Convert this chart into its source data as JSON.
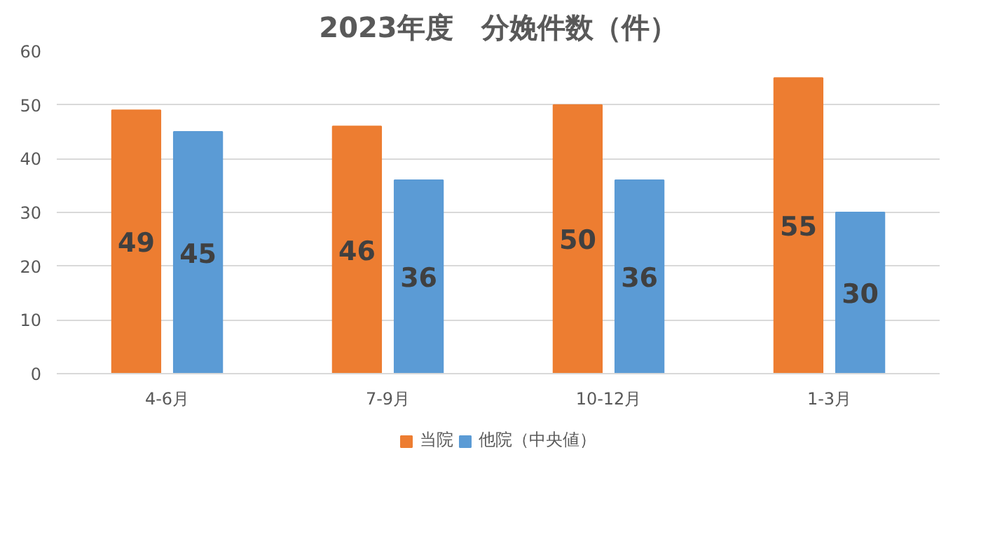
{
  "chart_data": {
    "type": "bar",
    "title": "2023年度　分娩件数（件）",
    "categories": [
      "4-6月",
      "7-9月",
      "10-12月",
      "1-3月"
    ],
    "series": [
      {
        "name": "当院",
        "color": "#ed7d31",
        "values": [
          49,
          46,
          50,
          55
        ]
      },
      {
        "name": "他院（中央値）",
        "color": "#5b9bd5",
        "values": [
          45,
          36,
          36,
          30
        ]
      }
    ],
    "ylim": [
      0,
      60
    ],
    "yticks": [
      0,
      10,
      20,
      30,
      40,
      50,
      60
    ],
    "grid": "y",
    "legend": "bottom",
    "data_labels": true
  }
}
